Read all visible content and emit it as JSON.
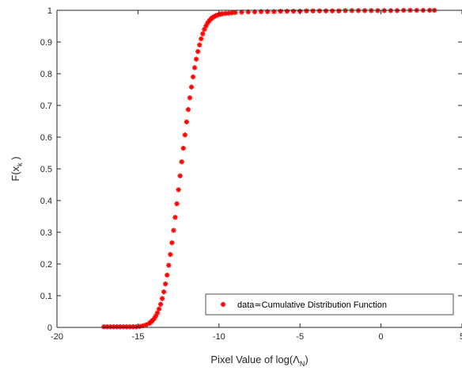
{
  "chart_data": {
    "type": "scatter",
    "xlabel_text": "Pixel Value of log(",
    "xlabel_symbol": "Λ",
    "xlabel_sub": "N",
    "xlabel_close": ")",
    "ylabel_text": "F(x",
    "ylabel_sub": "k",
    "ylabel_close": " )",
    "xlim": [
      -20,
      5
    ],
    "ylim": [
      0,
      1
    ],
    "xticks": [
      -20,
      -15,
      -10,
      -5,
      0,
      5
    ],
    "xtick_labels": [
      "-20",
      "-15",
      "-10",
      "-5",
      "0",
      "5"
    ],
    "yticks": [
      0,
      0.1,
      0.2,
      0.3,
      0.4,
      0.5,
      0.6,
      0.7,
      0.8,
      0.9,
      1
    ],
    "ytick_labels": [
      "0",
      "0.1",
      "0.2",
      "0.3",
      "0.4",
      "0.5",
      "0.6",
      "0.7",
      "0.8",
      "0.9",
      "1"
    ],
    "grid": false,
    "legend_position": "bottom-right",
    "marker_color": "#ff0000",
    "series": [
      {
        "name": "data≃Cumulative Distribution Function",
        "x": [
          -17.1,
          -16.9,
          -16.7,
          -16.5,
          -16.3,
          -16.1,
          -15.9,
          -15.7,
          -15.5,
          -15.3,
          -15.1,
          -14.9,
          -14.7,
          -14.5,
          -14.3,
          -14.2,
          -14.1,
          -14.0,
          -13.9,
          -13.8,
          -13.7,
          -13.6,
          -13.5,
          -13.4,
          -13.3,
          -13.2,
          -13.1,
          -13.0,
          -12.9,
          -12.8,
          -12.7,
          -12.6,
          -12.5,
          -12.4,
          -12.3,
          -12.2,
          -12.1,
          -12.0,
          -11.9,
          -11.8,
          -11.7,
          -11.6,
          -11.5,
          -11.4,
          -11.3,
          -11.2,
          -11.1,
          -11.0,
          -10.9,
          -10.8,
          -10.7,
          -10.6,
          -10.5,
          -10.4,
          -10.3,
          -10.2,
          -10.1,
          -10.0,
          -9.9,
          -9.8,
          -9.6,
          -9.4,
          -9.2,
          -9.0,
          -8.6,
          -8.2,
          -7.8,
          -7.4,
          -7.0,
          -6.6,
          -6.2,
          -5.8,
          -5.4,
          -5.0,
          -4.6,
          -4.2,
          -3.8,
          -3.4,
          -3.0,
          -2.6,
          -2.2,
          -1.8,
          -1.4,
          -1.0,
          -0.6,
          -0.2,
          0.2,
          0.6,
          1.0,
          1.4,
          1.8,
          2.2,
          2.6,
          3.0,
          3.3
        ],
        "y": [
          0.002,
          0.002,
          0.002,
          0.002,
          0.002,
          0.002,
          0.002,
          0.002,
          0.002,
          0.002,
          0.002,
          0.003,
          0.005,
          0.008,
          0.013,
          0.017,
          0.022,
          0.028,
          0.036,
          0.046,
          0.058,
          0.073,
          0.091,
          0.112,
          0.137,
          0.165,
          0.196,
          0.23,
          0.267,
          0.306,
          0.347,
          0.39,
          0.434,
          0.478,
          0.522,
          0.565,
          0.607,
          0.648,
          0.687,
          0.724,
          0.758,
          0.79,
          0.819,
          0.846,
          0.87,
          0.891,
          0.91,
          0.926,
          0.94,
          0.951,
          0.96,
          0.967,
          0.973,
          0.977,
          0.98,
          0.983,
          0.985,
          0.987,
          0.988,
          0.989,
          0.99,
          0.991,
          0.992,
          0.993,
          0.994,
          0.995,
          0.995,
          0.996,
          0.996,
          0.996,
          0.997,
          0.997,
          0.997,
          0.997,
          0.998,
          0.998,
          0.998,
          0.998,
          0.998,
          0.998,
          0.999,
          0.999,
          0.999,
          0.999,
          0.999,
          0.999,
          0.999,
          0.999,
          0.999,
          1.0,
          1.0,
          1.0,
          1.0,
          1.0,
          1.0
        ]
      }
    ]
  }
}
